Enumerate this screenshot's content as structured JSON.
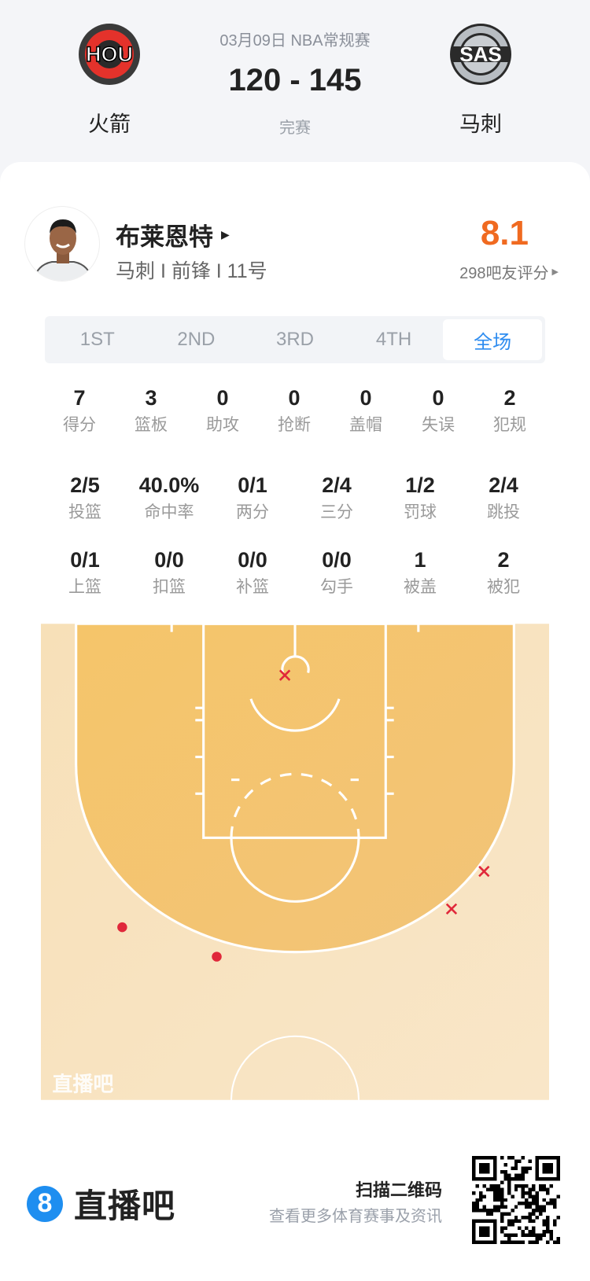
{
  "match": {
    "date_league": "03月09日 NBA常规赛",
    "score": "120 - 145",
    "status": "完赛",
    "home": {
      "abbr": "HOU",
      "name": "火箭"
    },
    "away": {
      "abbr": "SAS",
      "name": "马刺"
    }
  },
  "player": {
    "name": "布莱恩特",
    "info": "马刺 I 前锋 I 11号",
    "rating": "8.1",
    "rating_count": "298吧友评分",
    "rating_color": "#f06a20"
  },
  "tabs": [
    {
      "label": "1ST",
      "active": false
    },
    {
      "label": "2ND",
      "active": false
    },
    {
      "label": "3RD",
      "active": false
    },
    {
      "label": "4TH",
      "active": false
    },
    {
      "label": "全场",
      "active": true
    }
  ],
  "stats_row1": [
    {
      "value": "7",
      "label": "得分"
    },
    {
      "value": "3",
      "label": "篮板"
    },
    {
      "value": "0",
      "label": "助攻"
    },
    {
      "value": "0",
      "label": "抢断"
    },
    {
      "value": "0",
      "label": "盖帽"
    },
    {
      "value": "0",
      "label": "失误"
    },
    {
      "value": "2",
      "label": "犯规"
    }
  ],
  "stats_row2": [
    {
      "value": "2/5",
      "label": "投篮"
    },
    {
      "value": "40.0%",
      "label": "命中率"
    },
    {
      "value": "0/1",
      "label": "两分"
    },
    {
      "value": "2/4",
      "label": "三分"
    },
    {
      "value": "1/2",
      "label": "罚球"
    },
    {
      "value": "2/4",
      "label": "跳投"
    }
  ],
  "stats_row3": [
    {
      "value": "0/1",
      "label": "上篮"
    },
    {
      "value": "0/0",
      "label": "扣篮"
    },
    {
      "value": "0/0",
      "label": "补篮"
    },
    {
      "value": "0/0",
      "label": "勾手"
    },
    {
      "value": "1",
      "label": "被盖"
    },
    {
      "value": "2",
      "label": "被犯"
    }
  ],
  "shot_chart": {
    "watermark": "直播吧",
    "units": "feet from basket (x right, y toward half court)",
    "shots": [
      {
        "x_ft": -1.0,
        "y_ft": 0.0,
        "result": "missed"
      },
      {
        "x_ft": 18.6,
        "y_ft": 19.3,
        "result": "missed"
      },
      {
        "x_ft": 15.4,
        "y_ft": 23.0,
        "result": "missed"
      },
      {
        "x_ft": -17.0,
        "y_ft": 24.8,
        "result": "made"
      },
      {
        "x_ft": -7.7,
        "y_ft": 27.7,
        "result": "made"
      }
    ],
    "colors": {
      "paint_area": "#f5c66e",
      "outside": "#f8e3c0",
      "marker": "#e0283a"
    }
  },
  "footer": {
    "brand_badge": "8",
    "brand_name": "直播吧",
    "scan_title": "扫描二维码",
    "scan_sub": "查看更多体育赛事及资讯",
    "brand_color": "#1e8ef0"
  }
}
